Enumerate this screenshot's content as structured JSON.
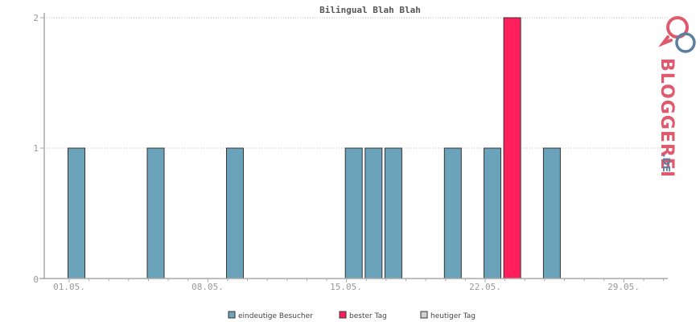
{
  "chart_data": {
    "type": "bar",
    "title": "Bilingual Blah Blah",
    "ylim": [
      0,
      2
    ],
    "yticks": [
      "0",
      "1",
      "2"
    ],
    "x_tick_labels": [
      "01.05.",
      "08.05.",
      "15.05.",
      "22.05.",
      "29.05."
    ],
    "grid": "horizontal dotted",
    "legend_position": "bottom",
    "colors": {
      "eindeutige_besucher": "#6ba3bb",
      "bester_tag": "#ff1f5a",
      "heutiger_tag": "#d3d3d3",
      "bar_border": "#333333",
      "axis": "#aaaaaa"
    },
    "series": [
      {
        "name": "eindeutige Besucher",
        "points": [
          {
            "day": "01.05.",
            "value": 1
          },
          {
            "day": "05.05.",
            "value": 1
          },
          {
            "day": "09.05.",
            "value": 1
          },
          {
            "day": "15.05.",
            "value": 1
          },
          {
            "day": "16.05.",
            "value": 1
          },
          {
            "day": "17.05.",
            "value": 1
          },
          {
            "day": "20.05.",
            "value": 1
          },
          {
            "day": "22.05.",
            "value": 1
          },
          {
            "day": "25.05.",
            "value": 1
          }
        ]
      },
      {
        "name": "bester Tag",
        "points": [
          {
            "day": "23.05.",
            "value": 2
          }
        ]
      },
      {
        "name": "heutiger Tag",
        "points": []
      }
    ]
  },
  "legend": {
    "item1": "eindeutige Besucher",
    "item2": "bester Tag",
    "item3": "heutiger Tag"
  },
  "logo": {
    "brand_main": "BLOGGEREI",
    "brand_tld": ".DE",
    "colors": {
      "primary": "#e05a6e",
      "secondary": "#5a7fa0"
    }
  }
}
